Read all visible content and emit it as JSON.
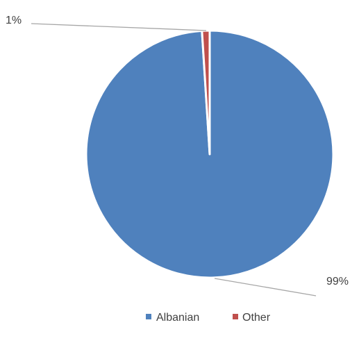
{
  "chart_data": {
    "type": "pie",
    "title": "",
    "categories": [
      "Albanian",
      "Other"
    ],
    "values": [
      99,
      1
    ],
    "data_labels": [
      "99%",
      "1%"
    ],
    "colors": [
      "#4F81BD",
      "#C0504D"
    ],
    "start_angle_deg": 0,
    "direction": "clockwise",
    "legend": {
      "position": "bottom",
      "entries": [
        "Albanian",
        "Other"
      ]
    }
  }
}
